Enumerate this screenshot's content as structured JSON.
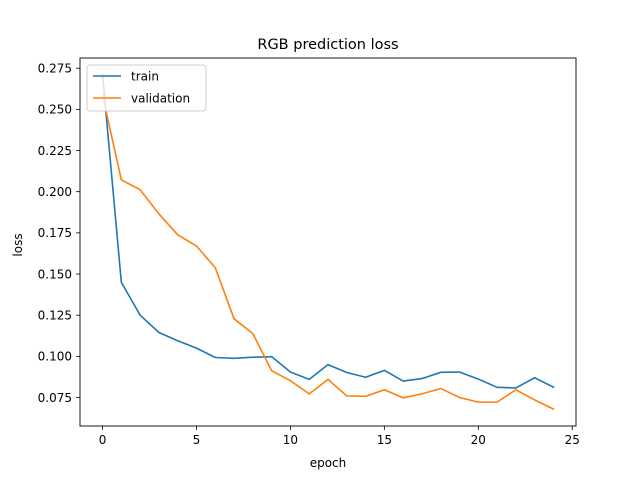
{
  "chart_data": {
    "type": "line",
    "title": "RGB prediction loss",
    "xlabel": "epoch",
    "ylabel": "loss",
    "xlim": [
      -1.2,
      25.2
    ],
    "ylim": [
      0.0577,
      0.2812
    ],
    "xticks": [
      0,
      5,
      10,
      15,
      20,
      25
    ],
    "yticks": [
      0.075,
      0.1,
      0.125,
      0.15,
      0.175,
      0.2,
      0.225,
      0.25,
      0.275
    ],
    "xtick_labels": [
      "0",
      "5",
      "10",
      "15",
      "20",
      "25"
    ],
    "ytick_labels": [
      "0.075",
      "0.100",
      "0.125",
      "0.150",
      "0.175",
      "0.200",
      "0.225",
      "0.250",
      "0.275"
    ],
    "grid": false,
    "legend_position": "upper-left",
    "x": [
      0,
      1,
      2,
      3,
      4,
      5,
      6,
      7,
      8,
      9,
      10,
      11,
      12,
      13,
      14,
      15,
      16,
      17,
      18,
      19,
      20,
      21,
      22,
      23,
      24
    ],
    "series": [
      {
        "name": "train",
        "color": "#1f77b4",
        "values": [
          0.271,
          0.145,
          0.125,
          0.1145,
          0.1095,
          0.105,
          0.0993,
          0.0988,
          0.0995,
          0.0998,
          0.0905,
          0.086,
          0.095,
          0.0902,
          0.0873,
          0.0915,
          0.085,
          0.0865,
          0.0903,
          0.0905,
          0.0862,
          0.0812,
          0.0808,
          0.087,
          0.0813
        ]
      },
      {
        "name": "validation",
        "color": "#ff7f0e",
        "values": [
          0.2585,
          0.2072,
          0.2012,
          0.1865,
          0.1738,
          0.167,
          0.1538,
          0.1228,
          0.1138,
          0.0913,
          0.0852,
          0.0772,
          0.086,
          0.076,
          0.0757,
          0.0797,
          0.0748,
          0.0772,
          0.0805,
          0.075,
          0.0722,
          0.0722,
          0.0797,
          0.0735,
          0.068
        ]
      }
    ]
  }
}
